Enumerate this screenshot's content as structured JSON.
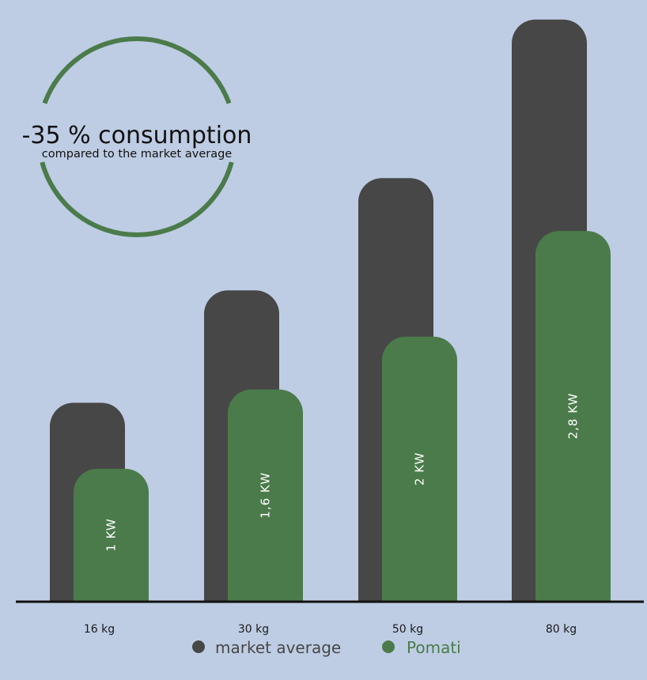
{
  "chart_data": {
    "type": "bar",
    "categories": [
      "16 kg",
      "30 kg",
      "50 kg",
      "80 kg"
    ],
    "series": [
      {
        "name": "market average",
        "values": [
          1.5,
          2.35,
          3.2,
          4.4
        ],
        "color": "#474747"
      },
      {
        "name": "Pomati",
        "values": [
          1.0,
          1.6,
          2.0,
          2.8
        ],
        "color": "#4B7B4A"
      }
    ],
    "data_labels": [
      "1 KW",
      "1,6 KW",
      "2 KW",
      "2,8 KW"
    ],
    "ylim": [
      0,
      4.5
    ],
    "grid": false,
    "legend_position": "bottom-center",
    "legend_text_colors": [
      "#474747",
      "#4B7B4A"
    ],
    "background": "#BECDE4",
    "annotation": {
      "title": "-35 % consumption",
      "subtitle": "compared to the market average",
      "ring_color": "#4B7B4A"
    },
    "title": "",
    "xlabel": "",
    "ylabel": ""
  }
}
